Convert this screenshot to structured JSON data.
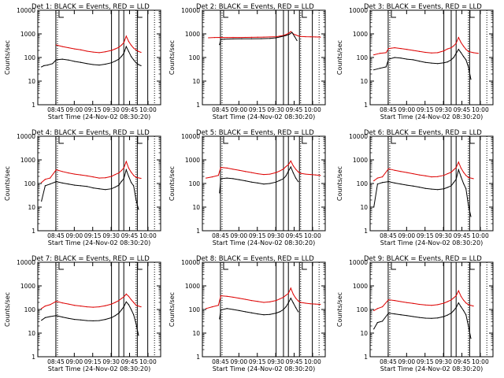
{
  "chart_data": {
    "type": "line",
    "grid": false,
    "colors": {
      "events": "#000000",
      "lld": "#dd0000",
      "axes": "#000000"
    },
    "y_scale": "log",
    "ylim": [
      1,
      10000
    ],
    "yticks": [
      "1",
      "10",
      "100",
      "1000",
      "10000"
    ],
    "ylabel": "Counts/sec",
    "xlabel": "Start Time (24-Nov-02 08:30:20)",
    "xticks": [
      "08:45",
      "09:00",
      "09:15",
      "09:30",
      "09:45",
      "10:00"
    ],
    "xlim_minutes": [
      0,
      100
    ],
    "panels": [
      {
        "title": "Det 1: BLACK = Events, RED = LLD",
        "tick_minutes": [
          14.7,
          29.7,
          44.7,
          59.7,
          74.7,
          89.7
        ],
        "vlines": [
          14.7,
          60.0,
          66.0,
          70.0,
          81.0,
          89.5
        ],
        "dotted": [
          16.0,
          80.0,
          95.0
        ],
        "events_x": [
          3,
          5,
          8,
          12,
          15,
          20,
          25,
          30,
          35,
          40,
          45,
          50,
          55,
          60,
          63,
          66,
          68,
          70,
          72,
          74,
          76,
          78,
          80,
          82,
          84
        ],
        "events_y": [
          40,
          45,
          48,
          55,
          80,
          85,
          78,
          68,
          62,
          55,
          50,
          48,
          52,
          60,
          70,
          85,
          110,
          150,
          290,
          180,
          110,
          80,
          60,
          50,
          45
        ],
        "lld_x": [
          15,
          20,
          25,
          30,
          35,
          40,
          45,
          50,
          55,
          60,
          63,
          66,
          68,
          70,
          72,
          74,
          76,
          78,
          80,
          82,
          84
        ],
        "lld_y": [
          340,
          290,
          260,
          230,
          210,
          185,
          170,
          160,
          175,
          200,
          230,
          270,
          330,
          420,
          800,
          480,
          330,
          250,
          210,
          180,
          165
        ]
      },
      {
        "title": "Det 2: BLACK = Events, RED = LLD",
        "tick_minutes": [
          14.7,
          29.7,
          44.7,
          59.7,
          74.7,
          89.7
        ],
        "vlines": [
          14.7,
          60.0,
          66.0,
          70.0,
          79.0,
          89.5
        ],
        "dotted": [
          16.0,
          80.0,
          95.0
        ],
        "events_x": [
          14,
          15,
          18,
          25,
          32,
          40,
          48,
          55,
          60,
          64,
          68,
          71,
          73,
          75,
          77
        ],
        "events_y": [
          350,
          580,
          600,
          610,
          615,
          620,
          625,
          640,
          680,
          760,
          850,
          980,
          1150,
          780,
          520
        ],
        "lld_x": [
          5,
          10,
          15,
          20,
          25,
          30,
          35,
          40,
          45,
          50,
          55,
          60,
          63,
          66,
          68,
          70,
          72,
          74,
          76,
          78,
          80,
          84,
          88,
          92,
          96
        ],
        "lld_y": [
          680,
          700,
          710,
          700,
          710,
          705,
          710,
          715,
          720,
          730,
          740,
          760,
          800,
          860,
          940,
          1050,
          1250,
          1000,
          900,
          820,
          780,
          760,
          750,
          740,
          730
        ]
      },
      {
        "title": "Det 3: BLACK = Events, RED = LLD",
        "tick_minutes": [
          14.7,
          29.7,
          44.7,
          59.7,
          74.7,
          89.7
        ],
        "vlines": [
          14.7,
          60.0,
          66.0,
          70.0,
          81.0,
          89.5
        ],
        "dotted": [
          16.0,
          80.0,
          95.0
        ],
        "events_x": [
          3,
          8,
          13,
          15,
          20,
          25,
          30,
          35,
          40,
          45,
          50,
          55,
          60,
          63,
          66,
          68,
          70,
          72,
          74,
          76,
          78,
          80,
          82
        ],
        "events_y": [
          30,
          35,
          40,
          85,
          100,
          95,
          85,
          80,
          70,
          62,
          58,
          55,
          60,
          65,
          80,
          100,
          150,
          220,
          160,
          110,
          80,
          40,
          12
        ],
        "lld_x": [
          3,
          8,
          13,
          15,
          20,
          25,
          30,
          35,
          40,
          45,
          50,
          55,
          60,
          63,
          66,
          68,
          70,
          72,
          74,
          76,
          78,
          80,
          84,
          88
        ],
        "lld_y": [
          130,
          150,
          160,
          240,
          260,
          240,
          220,
          200,
          180,
          165,
          155,
          160,
          190,
          230,
          260,
          310,
          400,
          700,
          430,
          300,
          220,
          180,
          160,
          150
        ]
      },
      {
        "title": "Det 4: BLACK = Events, RED = LLD",
        "tick_minutes": [
          14.7,
          29.7,
          44.7,
          59.7,
          74.7,
          89.7
        ],
        "vlines": [
          14.7,
          60.0,
          66.0,
          70.0,
          81.0,
          89.5
        ],
        "dotted": [
          16.0,
          80.0,
          95.0
        ],
        "events_x": [
          3,
          6,
          10,
          15,
          20,
          25,
          30,
          35,
          40,
          45,
          50,
          55,
          60,
          63,
          66,
          68,
          70,
          72,
          74,
          76,
          78,
          80,
          82
        ],
        "events_y": [
          18,
          80,
          95,
          120,
          105,
          95,
          85,
          80,
          75,
          65,
          60,
          55,
          60,
          70,
          85,
          120,
          160,
          380,
          200,
          110,
          80,
          20,
          8
        ],
        "lld_x": [
          3,
          6,
          10,
          15,
          20,
          25,
          30,
          35,
          40,
          45,
          50,
          55,
          60,
          63,
          66,
          68,
          70,
          72,
          74,
          76,
          78,
          80,
          84
        ],
        "lld_y": [
          110,
          150,
          170,
          380,
          320,
          280,
          250,
          230,
          210,
          190,
          170,
          175,
          200,
          240,
          280,
          350,
          450,
          850,
          450,
          300,
          220,
          180,
          165
        ]
      },
      {
        "title": "Det 5: BLACK = Events, RED = LLD",
        "tick_minutes": [
          14.7,
          29.7,
          44.7,
          59.7,
          74.7,
          89.7
        ],
        "vlines": [
          14.7,
          60.0,
          66.0,
          70.0,
          79.0,
          89.5
        ],
        "dotted": [
          16.0,
          80.0,
          95.0
        ],
        "events_x": [
          14,
          15,
          20,
          25,
          30,
          35,
          40,
          45,
          50,
          55,
          60,
          63,
          66,
          68,
          70,
          72,
          74,
          76,
          78
        ],
        "events_y": [
          40,
          160,
          170,
          160,
          145,
          130,
          115,
          105,
          95,
          100,
          115,
          135,
          160,
          210,
          330,
          500,
          280,
          170,
          120
        ],
        "lld_x": [
          3,
          8,
          13,
          15,
          20,
          25,
          30,
          35,
          40,
          45,
          50,
          55,
          60,
          63,
          66,
          68,
          70,
          72,
          74,
          76,
          78,
          80,
          84,
          88,
          92,
          96
        ],
        "lld_y": [
          170,
          190,
          220,
          480,
          450,
          400,
          360,
          320,
          290,
          260,
          240,
          250,
          290,
          340,
          410,
          520,
          620,
          900,
          560,
          400,
          310,
          270,
          250,
          240,
          230,
          220
        ]
      },
      {
        "title": "Det 6: BLACK = Events, RED = LLD",
        "tick_minutes": [
          14.7,
          29.7,
          44.7,
          59.7,
          74.7,
          89.7
        ],
        "vlines": [
          14.7,
          60.0,
          66.0,
          70.0,
          81.0,
          89.5
        ],
        "dotted": [
          16.0,
          80.0,
          95.0
        ],
        "events_x": [
          3,
          6,
          10,
          15,
          20,
          25,
          30,
          35,
          40,
          45,
          50,
          55,
          60,
          63,
          66,
          68,
          70,
          72,
          74,
          76,
          78,
          80,
          82
        ],
        "events_y": [
          10,
          95,
          110,
          120,
          105,
          95,
          85,
          78,
          70,
          62,
          58,
          55,
          60,
          68,
          80,
          110,
          150,
          380,
          190,
          100,
          60,
          12,
          4
        ],
        "lld_x": [
          3,
          6,
          10,
          15,
          20,
          25,
          30,
          35,
          40,
          45,
          50,
          55,
          60,
          63,
          66,
          68,
          70,
          72,
          74,
          76,
          78,
          80,
          84
        ],
        "lld_y": [
          130,
          170,
          190,
          420,
          360,
          320,
          290,
          260,
          230,
          210,
          190,
          195,
          220,
          260,
          300,
          380,
          470,
          800,
          450,
          300,
          220,
          180,
          160
        ]
      },
      {
        "title": "Det 7: BLACK = Events, RED = LLD",
        "tick_minutes": [
          14.7,
          29.7,
          44.7,
          59.7,
          74.7,
          89.7
        ],
        "vlines": [
          14.7,
          60.0,
          66.0,
          70.0,
          81.0,
          89.5
        ],
        "dotted": [
          16.0,
          80.0,
          95.0
        ],
        "events_x": [
          3,
          6,
          10,
          15,
          20,
          25,
          30,
          35,
          40,
          45,
          50,
          55,
          60,
          63,
          66,
          68,
          70,
          72,
          74,
          76,
          78,
          80,
          82
        ],
        "events_y": [
          35,
          45,
          50,
          55,
          48,
          42,
          38,
          36,
          34,
          33,
          34,
          38,
          45,
          55,
          70,
          95,
          130,
          210,
          160,
          100,
          60,
          25,
          8
        ],
        "lld_x": [
          3,
          6,
          10,
          15,
          20,
          25,
          30,
          35,
          40,
          45,
          50,
          55,
          60,
          63,
          66,
          68,
          70,
          72,
          74,
          76,
          78,
          80,
          84
        ],
        "lld_y": [
          110,
          140,
          160,
          220,
          190,
          170,
          150,
          140,
          130,
          125,
          130,
          145,
          170,
          200,
          240,
          290,
          340,
          450,
          360,
          260,
          200,
          150,
          130
        ]
      },
      {
        "title": "Det 8: BLACK = Events, RED = LLD",
        "tick_minutes": [
          14.7,
          29.7,
          44.7,
          59.7,
          74.7,
          89.7
        ],
        "vlines": [
          14.7,
          60.0,
          66.0,
          70.0,
          79.0,
          89.5
        ],
        "dotted": [
          16.0,
          80.0,
          95.0
        ],
        "events_x": [
          14,
          15,
          20,
          25,
          30,
          35,
          40,
          45,
          50,
          55,
          60,
          63,
          66,
          68,
          70,
          72,
          74,
          76,
          78
        ],
        "events_y": [
          40,
          95,
          110,
          100,
          90,
          80,
          72,
          65,
          60,
          62,
          70,
          80,
          100,
          130,
          190,
          300,
          190,
          120,
          80
        ],
        "lld_x": [
          3,
          8,
          13,
          15,
          20,
          25,
          30,
          35,
          40,
          45,
          50,
          55,
          60,
          63,
          66,
          68,
          70,
          72,
          74,
          76,
          78,
          80,
          84,
          88,
          92,
          96
        ],
        "lld_y": [
          110,
          130,
          150,
          380,
          360,
          330,
          300,
          270,
          240,
          220,
          200,
          210,
          240,
          280,
          330,
          400,
          480,
          800,
          440,
          300,
          230,
          200,
          185,
          175,
          170,
          165
        ]
      },
      {
        "title": "Det 9: BLACK = Events, RED = LLD",
        "tick_minutes": [
          14.7,
          29.7,
          44.7,
          59.7,
          74.7,
          89.7
        ],
        "vlines": [
          14.7,
          60.0,
          66.0,
          70.0,
          81.0,
          89.5
        ],
        "dotted": [
          16.0,
          80.0,
          95.0
        ],
        "events_x": [
          3,
          6,
          10,
          15,
          20,
          25,
          30,
          35,
          40,
          45,
          50,
          55,
          60,
          63,
          66,
          68,
          70,
          72,
          74,
          76,
          78,
          80,
          82
        ],
        "events_y": [
          15,
          28,
          32,
          70,
          65,
          60,
          55,
          50,
          46,
          43,
          42,
          44,
          50,
          58,
          70,
          90,
          120,
          190,
          130,
          90,
          60,
          20,
          6
        ],
        "lld_x": [
          3,
          6,
          10,
          15,
          20,
          25,
          30,
          35,
          40,
          45,
          50,
          55,
          60,
          63,
          66,
          68,
          70,
          72,
          74,
          76,
          78,
          80,
          84
        ],
        "lld_y": [
          90,
          110,
          130,
          260,
          240,
          215,
          195,
          180,
          165,
          155,
          150,
          160,
          185,
          215,
          255,
          310,
          380,
          620,
          360,
          250,
          190,
          160,
          140
        ]
      }
    ]
  }
}
